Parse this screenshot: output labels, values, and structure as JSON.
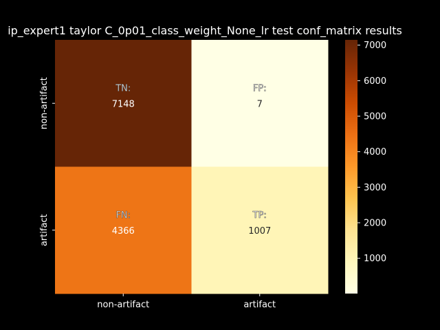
{
  "chart_data": {
    "type": "heatmap",
    "title": "ip_expert1 taylor C_0p01_class_weight_None_lr test conf_matrix results",
    "x_categories": [
      "non-artifact",
      "artifact"
    ],
    "y_categories": [
      "non-artifact",
      "artifact"
    ],
    "cells": [
      [
        {
          "label": "TN:",
          "value": 7148
        },
        {
          "label": "FP:",
          "value": 7
        }
      ],
      [
        {
          "label": "FN:",
          "value": 4366
        },
        {
          "label": "TP:",
          "value": 1007
        }
      ]
    ],
    "color_range": [
      7,
      7148
    ],
    "colormap": "YlOrBr",
    "colorbar_ticks": [
      1000,
      2000,
      3000,
      4000,
      5000,
      6000,
      7000
    ],
    "background_color": "#000000",
    "text_color": "#ffffff"
  }
}
